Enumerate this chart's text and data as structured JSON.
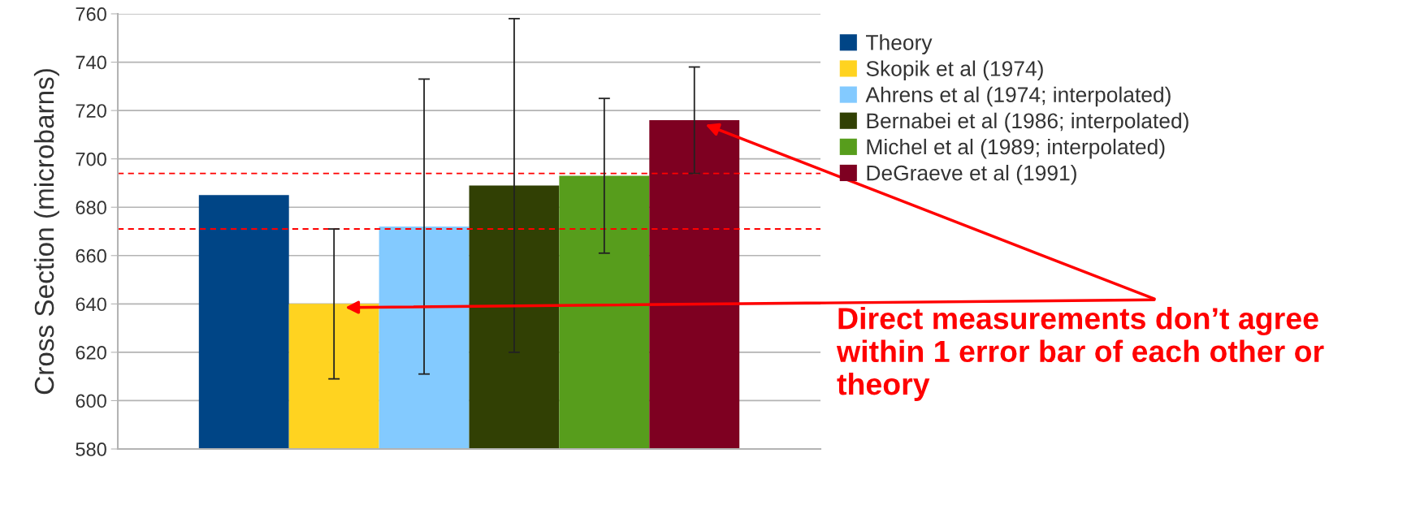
{
  "chart_data": {
    "type": "bar",
    "ylabel": "Cross Section (microbarns)",
    "categories": [
      null
    ],
    "series": [
      {
        "name": "Theory",
        "color": "#004586",
        "values": [
          685
        ],
        "errors": [
          null
        ]
      },
      {
        "name": "Skopik et al (1974)",
        "color": "#ffd320",
        "values": [
          640
        ],
        "errors": [
          [
            609,
            671
          ]
        ]
      },
      {
        "name": "Ahrens et al (1974; interpolated)",
        "color": "#83caff",
        "values": [
          672
        ],
        "errors": [
          [
            611,
            733
          ]
        ]
      },
      {
        "name": "Bernabei et al (1986; interpolated)",
        "color": "#314004",
        "values": [
          689
        ],
        "errors": [
          [
            620,
            758
          ]
        ]
      },
      {
        "name": "Michel et al (1989; interpolated)",
        "color": "#579d1c",
        "values": [
          693
        ],
        "errors": [
          [
            661,
            725
          ]
        ]
      },
      {
        "name": "DeGraeve et al (1991)",
        "color": "#7e0021",
        "values": [
          716
        ],
        "errors": [
          [
            694,
            738
          ]
        ]
      }
    ],
    "ylim": [
      580,
      760
    ],
    "yticks": [
      580,
      600,
      620,
      640,
      660,
      680,
      700,
      720,
      740,
      760
    ],
    "ref_lines": [
      {
        "axis": "y",
        "value": 694,
        "color": "#ff0000",
        "line_style": "dashed"
      },
      {
        "axis": "y",
        "value": 671,
        "color": "#ff0000",
        "line_style": "dashed"
      }
    ],
    "grid": "y",
    "legend": "right",
    "annotations": [
      "Direct measurements don’t agree within 1 error bar of each other or theory"
    ]
  }
}
